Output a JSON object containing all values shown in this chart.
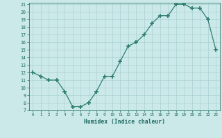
{
  "x": [
    0,
    1,
    2,
    3,
    4,
    5,
    6,
    7,
    8,
    9,
    10,
    11,
    12,
    13,
    14,
    15,
    16,
    17,
    18,
    19,
    20,
    21,
    22,
    23
  ],
  "y": [
    12,
    11.5,
    11,
    11,
    9.5,
    7.5,
    7.5,
    8,
    9.5,
    11.5,
    11.5,
    13.5,
    15.5,
    16,
    17,
    18.5,
    19.5,
    19.5,
    21,
    21,
    20.5,
    20.5,
    19,
    15
  ],
  "xlabel": "Humidex (Indice chaleur)",
  "ylim": [
    7,
    21
  ],
  "xlim": [
    -0.5,
    23.5
  ],
  "yticks": [
    7,
    8,
    9,
    10,
    11,
    12,
    13,
    14,
    15,
    16,
    17,
    18,
    19,
    20,
    21
  ],
  "xticks": [
    0,
    1,
    2,
    3,
    4,
    5,
    6,
    7,
    8,
    9,
    10,
    11,
    12,
    13,
    14,
    15,
    16,
    17,
    18,
    19,
    20,
    21,
    22,
    23
  ],
  "line_color": "#2d7d6e",
  "marker_color": "#2d7d6e",
  "bg_color": "#cce9ea",
  "grid_color": "#aad0d2",
  "tick_label_color": "#1a6a5e",
  "xlabel_color": "#1a6a5e",
  "axis_color": "#2d7d6e"
}
